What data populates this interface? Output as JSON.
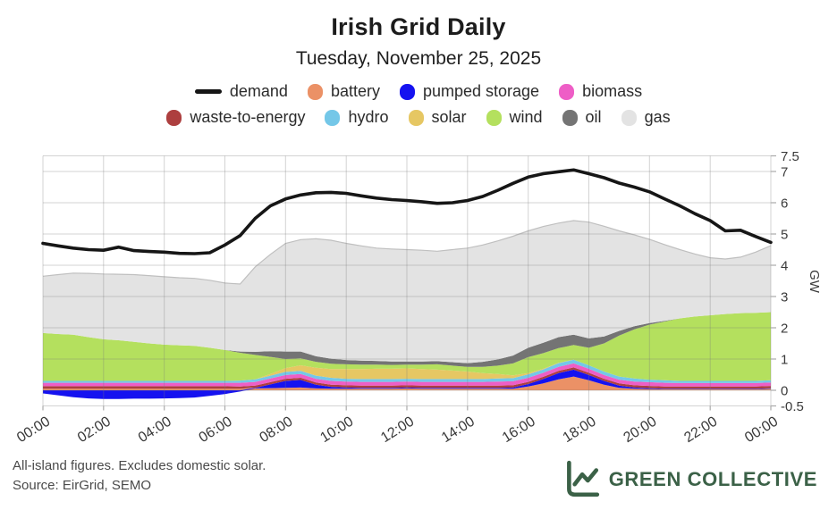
{
  "header": {
    "title": "Irish Grid Daily",
    "subtitle": "Tuesday, November 25, 2025"
  },
  "footer": {
    "line1": "All-island figures. Excludes domestic solar.",
    "line2": "Source: EirGrid, SEMO"
  },
  "brand": {
    "name": "GREEN COLLECTIVE",
    "color": "#3b6147"
  },
  "chart_data": {
    "type": "area",
    "stacked": true,
    "title": "Irish Grid Daily",
    "subtitle": "Tuesday, November 25, 2025",
    "ylabel": "GW",
    "ylim": [
      -0.5,
      7.5
    ],
    "grid": true,
    "legend_position": "top",
    "x_unit": "hour",
    "x": [
      0,
      0.5,
      1,
      1.5,
      2,
      2.5,
      3,
      3.5,
      4,
      4.5,
      5,
      5.5,
      6,
      6.5,
      7,
      7.5,
      8,
      8.5,
      9,
      9.5,
      10,
      10.5,
      11,
      11.5,
      12,
      12.5,
      13,
      13.5,
      14,
      14.5,
      15,
      15.5,
      16,
      16.5,
      17,
      17.5,
      18,
      18.5,
      19,
      19.5,
      20,
      20.5,
      21,
      21.5,
      22,
      22.5,
      23,
      23.5,
      24
    ],
    "x_ticks": [
      {
        "t": 0,
        "label": "00:00"
      },
      {
        "t": 2,
        "label": "02:00"
      },
      {
        "t": 4,
        "label": "04:00"
      },
      {
        "t": 6,
        "label": "06:00"
      },
      {
        "t": 8,
        "label": "08:00"
      },
      {
        "t": 10,
        "label": "10:00"
      },
      {
        "t": 12,
        "label": "12:00"
      },
      {
        "t": 14,
        "label": "14:00"
      },
      {
        "t": 16,
        "label": "16:00"
      },
      {
        "t": 18,
        "label": "18:00"
      },
      {
        "t": 20,
        "label": "20:00"
      },
      {
        "t": 22,
        "label": "22:00"
      },
      {
        "t": 24,
        "label": "00:00"
      }
    ],
    "y_ticks": [
      {
        "v": -0.5,
        "label": "-0.5"
      },
      {
        "v": 0,
        "label": "0"
      },
      {
        "v": 1,
        "label": "1"
      },
      {
        "v": 2,
        "label": "2"
      },
      {
        "v": 3,
        "label": "3"
      },
      {
        "v": 4,
        "label": "4"
      },
      {
        "v": 5,
        "label": "5"
      },
      {
        "v": 6,
        "label": "6"
      },
      {
        "v": 7,
        "label": "7"
      },
      {
        "v": 7.5,
        "label": "7.5"
      }
    ],
    "demand": {
      "label": "demand",
      "color": "#161616",
      "values": [
        4.7,
        4.62,
        4.55,
        4.5,
        4.48,
        4.58,
        4.47,
        4.44,
        4.42,
        4.38,
        4.37,
        4.4,
        4.65,
        4.95,
        5.5,
        5.9,
        6.12,
        6.25,
        6.32,
        6.33,
        6.3,
        6.22,
        6.15,
        6.1,
        6.07,
        6.03,
        5.98,
        6.0,
        6.07,
        6.2,
        6.4,
        6.62,
        6.82,
        6.93,
        6.99,
        7.05,
        6.93,
        6.8,
        6.63,
        6.5,
        6.35,
        6.12,
        5.9,
        5.65,
        5.43,
        5.1,
        5.12,
        4.92,
        4.73
      ]
    },
    "series": [
      {
        "key": "battery",
        "label": "battery",
        "color": "#eb9166",
        "values": [
          0.05,
          0.05,
          0.05,
          0.05,
          0.05,
          0.05,
          0.05,
          0.05,
          0.05,
          0.05,
          0.05,
          0.05,
          0.05,
          0.05,
          0.06,
          0.07,
          0.08,
          0.09,
          0.06,
          0.05,
          0.05,
          0.05,
          0.05,
          0.05,
          0.06,
          0.05,
          0.05,
          0.05,
          0.05,
          0.05,
          0.05,
          0.05,
          0.12,
          0.22,
          0.35,
          0.44,
          0.32,
          0.18,
          0.08,
          0.05,
          0.04,
          0.03,
          0.03,
          0.03,
          0.03,
          0.03,
          0.03,
          0.03,
          0.05
        ]
      },
      {
        "key": "pumped_storage",
        "label": "pumped storage",
        "color": "#1512f0",
        "values": [
          -0.1,
          -0.16,
          -0.22,
          -0.26,
          -0.28,
          -0.28,
          -0.27,
          -0.27,
          -0.26,
          -0.25,
          -0.23,
          -0.18,
          -0.12,
          -0.04,
          0.02,
          0.12,
          0.22,
          0.24,
          0.12,
          0.06,
          0.04,
          0.03,
          0.03,
          0.03,
          0.03,
          0.03,
          0.03,
          0.03,
          0.03,
          0.03,
          0.03,
          0.04,
          0.08,
          0.14,
          0.2,
          0.22,
          0.17,
          0.12,
          0.07,
          0.04,
          0.03,
          0.02,
          0.02,
          0.02,
          0.02,
          0.02,
          0.02,
          0.02,
          0.02
        ]
      },
      {
        "key": "waste_to_energy",
        "label": "waste-to-energy",
        "color": "#ad3f3f",
        "values": [
          0.08,
          0.08,
          0.08,
          0.08,
          0.08,
          0.08,
          0.08,
          0.08,
          0.08,
          0.08,
          0.08,
          0.08,
          0.08,
          0.07,
          0.07,
          0.07,
          0.07,
          0.07,
          0.07,
          0.07,
          0.07,
          0.07,
          0.07,
          0.07,
          0.07,
          0.07,
          0.07,
          0.07,
          0.07,
          0.07,
          0.07,
          0.07,
          0.07,
          0.07,
          0.07,
          0.07,
          0.07,
          0.07,
          0.07,
          0.07,
          0.07,
          0.07,
          0.07,
          0.07,
          0.07,
          0.07,
          0.07,
          0.07,
          0.07
        ]
      },
      {
        "key": "biomass",
        "label": "biomass",
        "color": "#ee5ec6",
        "values": [
          0.11,
          0.11,
          0.11,
          0.11,
          0.11,
          0.11,
          0.11,
          0.11,
          0.11,
          0.11,
          0.11,
          0.11,
          0.11,
          0.12,
          0.12,
          0.12,
          0.12,
          0.12,
          0.12,
          0.12,
          0.12,
          0.12,
          0.12,
          0.12,
          0.12,
          0.12,
          0.12,
          0.12,
          0.12,
          0.12,
          0.13,
          0.13,
          0.13,
          0.13,
          0.13,
          0.13,
          0.13,
          0.12,
          0.12,
          0.12,
          0.12,
          0.12,
          0.11,
          0.11,
          0.11,
          0.11,
          0.11,
          0.11,
          0.11
        ]
      },
      {
        "key": "hydro",
        "label": "hydro",
        "color": "#74c7e8",
        "values": [
          0.06,
          0.06,
          0.06,
          0.06,
          0.06,
          0.06,
          0.06,
          0.06,
          0.06,
          0.06,
          0.06,
          0.06,
          0.06,
          0.07,
          0.08,
          0.09,
          0.1,
          0.1,
          0.1,
          0.1,
          0.09,
          0.09,
          0.09,
          0.09,
          0.09,
          0.09,
          0.09,
          0.09,
          0.09,
          0.09,
          0.1,
          0.1,
          0.11,
          0.11,
          0.12,
          0.12,
          0.11,
          0.11,
          0.1,
          0.1,
          0.08,
          0.08,
          0.07,
          0.07,
          0.07,
          0.07,
          0.07,
          0.07,
          0.07
        ]
      },
      {
        "key": "solar",
        "label": "solar",
        "color": "#e6c763",
        "values": [
          0,
          0,
          0,
          0,
          0,
          0,
          0,
          0,
          0,
          0,
          0,
          0,
          0,
          0,
          0,
          0.05,
          0.12,
          0.18,
          0.25,
          0.28,
          0.31,
          0.32,
          0.33,
          0.33,
          0.33,
          0.32,
          0.3,
          0.27,
          0.24,
          0.19,
          0.14,
          0.09,
          0.04,
          0.02,
          0.01,
          0,
          0,
          0,
          0,
          0,
          0,
          0,
          0,
          0,
          0,
          0,
          0,
          0,
          0
        ]
      },
      {
        "key": "wind",
        "label": "wind",
        "color": "#b4e05e",
        "values": [
          1.53,
          1.5,
          1.48,
          1.4,
          1.33,
          1.3,
          1.25,
          1.2,
          1.16,
          1.14,
          1.12,
          1.06,
          0.99,
          0.89,
          0.78,
          0.55,
          0.29,
          0.22,
          0.19,
          0.17,
          0.15,
          0.14,
          0.13,
          0.12,
          0.12,
          0.14,
          0.17,
          0.16,
          0.15,
          0.2,
          0.27,
          0.38,
          0.51,
          0.5,
          0.47,
          0.47,
          0.56,
          0.9,
          1.31,
          1.57,
          1.76,
          1.88,
          2.0,
          2.06,
          2.1,
          2.14,
          2.17,
          2.18,
          2.18
        ]
      },
      {
        "key": "oil",
        "label": "oil",
        "color": "#747474",
        "values": [
          0,
          0,
          0,
          0,
          0,
          0,
          0,
          0,
          0,
          0,
          0,
          0,
          0,
          0.04,
          0.1,
          0.18,
          0.24,
          0.22,
          0.18,
          0.16,
          0.14,
          0.13,
          0.12,
          0.11,
          0.1,
          0.1,
          0.1,
          0.11,
          0.12,
          0.16,
          0.2,
          0.25,
          0.3,
          0.33,
          0.35,
          0.33,
          0.3,
          0.22,
          0.15,
          0.1,
          0.05,
          0.02,
          0,
          0,
          0,
          0,
          0,
          0,
          0
        ]
      },
      {
        "key": "gas",
        "label": "gas",
        "color": "#e3e3e3",
        "values": [
          1.82,
          1.9,
          1.97,
          2.04,
          2.09,
          2.11,
          2.15,
          2.17,
          2.17,
          2.16,
          2.16,
          2.16,
          2.14,
          2.16,
          2.72,
          3.1,
          3.46,
          3.58,
          3.76,
          3.79,
          3.73,
          3.67,
          3.61,
          3.6,
          3.58,
          3.56,
          3.52,
          3.6,
          3.68,
          3.74,
          3.79,
          3.82,
          3.74,
          3.72,
          3.65,
          3.65,
          3.72,
          3.53,
          3.2,
          2.92,
          2.68,
          2.44,
          2.2,
          2.0,
          1.84,
          1.76,
          1.79,
          1.94,
          2.13
        ]
      }
    ],
    "legend_rows": [
      [
        "demand",
        "battery",
        "pumped storage",
        "biomass"
      ],
      [
        "waste-to-energy",
        "hydro",
        "solar",
        "wind",
        "oil",
        "gas"
      ]
    ]
  }
}
